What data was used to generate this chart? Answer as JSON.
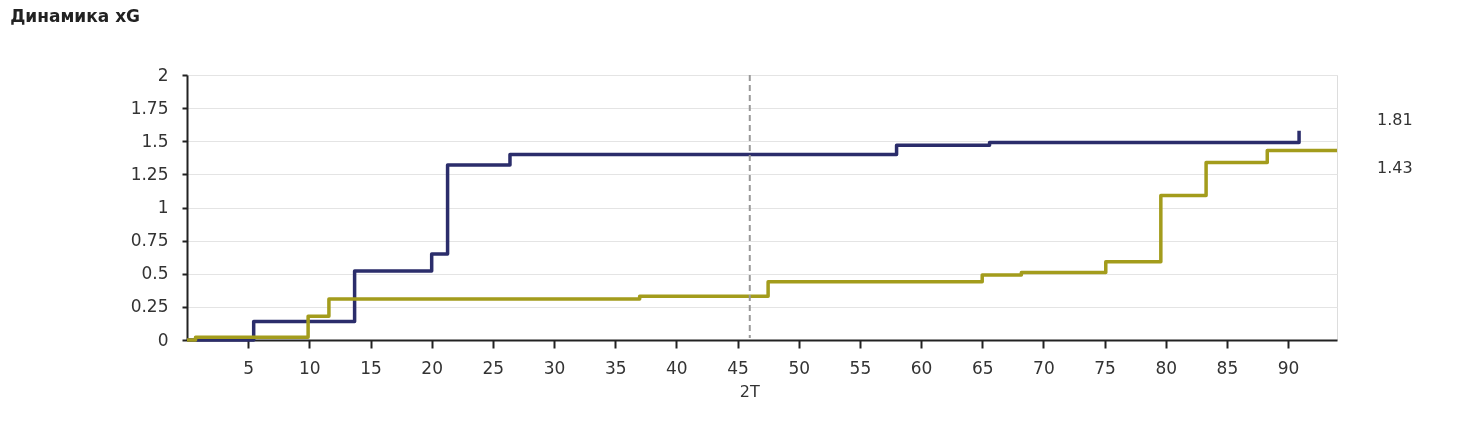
{
  "chart_data": {
    "type": "step",
    "title": "Динамика xG",
    "series": [
      {
        "color": "#2b2d6b",
        "x": [
          0,
          5.45,
          13.7,
          20.0,
          21.3,
          26.4,
          58.0,
          65.6,
          90.9
        ],
        "values": [
          0,
          0.14,
          0.52,
          0.65,
          1.32,
          1.4,
          1.47,
          1.49,
          1.58
        ]
      },
      {
        "color": "#a39c1c",
        "x": [
          0,
          0.7,
          9.9,
          11.6,
          37.0,
          47.5,
          65.0,
          68.2,
          75.1,
          79.6,
          83.3,
          88.3,
          94
        ],
        "values": [
          0,
          0.02,
          0.18,
          0.31,
          0.33,
          0.44,
          0.49,
          0.51,
          0.59,
          1.09,
          1.34,
          1.43,
          1.43
        ]
      }
    ],
    "xlim": [
      0,
      94
    ],
    "xticks": [
      5,
      10,
      15,
      20,
      25,
      30,
      35,
      40,
      45,
      50,
      55,
      60,
      65,
      70,
      75,
      80,
      85,
      90
    ],
    "ylim": [
      0,
      2
    ],
    "yticks": [
      0,
      0.25,
      0.5,
      0.75,
      1,
      1.25,
      1.5,
      1.75,
      2
    ],
    "grid": "y",
    "ref_lines": [
      {
        "axis": "x",
        "value": 46,
        "label": "2T",
        "color": "#999999",
        "line_style": "dashed"
      }
    ],
    "annotations": [
      "1.81",
      "1.43"
    ]
  }
}
